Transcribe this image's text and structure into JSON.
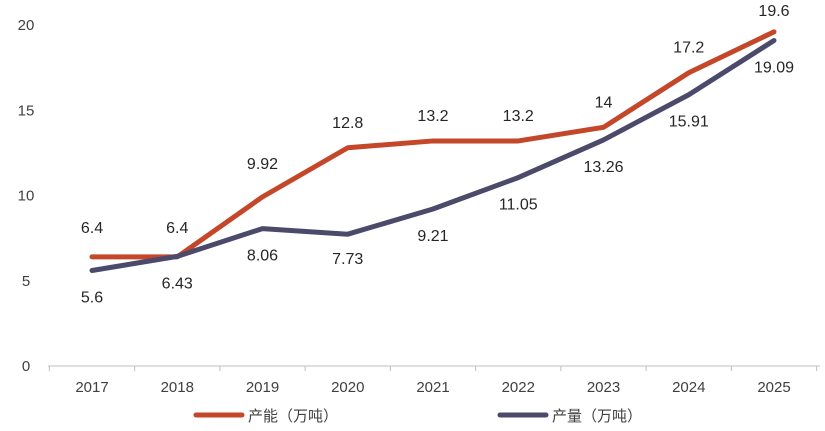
{
  "chart_data": {
    "type": "line",
    "categories": [
      "2017",
      "2018",
      "2019",
      "2020",
      "2021",
      "2022",
      "2023",
      "2024",
      "2025"
    ],
    "series": [
      {
        "name": "产能（万吨）",
        "color": "#C5472A",
        "values": [
          6.4,
          6.4,
          9.92,
          12.8,
          13.2,
          13.2,
          14,
          17.2,
          19.6
        ],
        "labels": [
          "6.4",
          "6.4",
          "9.92",
          "12.8",
          "13.2",
          "13.2",
          "14",
          "17.2",
          "19.6"
        ]
      },
      {
        "name": "产量（万吨）",
        "color": "#4B4A6B",
        "values": [
          5.6,
          6.43,
          8.06,
          7.73,
          9.21,
          11.05,
          13.26,
          15.91,
          19.09
        ],
        "labels": [
          "5.6",
          "6.43",
          "8.06",
          "7.73",
          "9.21",
          "11.05",
          "13.26",
          "15.91",
          "19.09"
        ]
      }
    ],
    "ylim": [
      0,
      20
    ],
    "yticks": [
      "0",
      "5",
      "10",
      "15",
      "20"
    ],
    "grid": false,
    "legend_position": "bottom"
  }
}
